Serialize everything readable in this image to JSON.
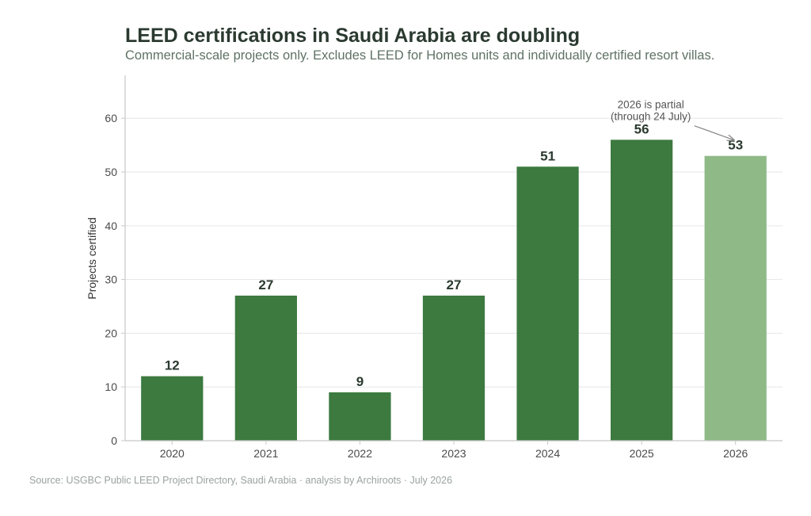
{
  "header": {
    "title": "LEED certifications in Saudi Arabia are doubling",
    "subtitle": "Commercial-scale projects only. Excludes LEED for Homes units and individually certified resort villas."
  },
  "footer": {
    "source": "Source: USGBC Public LEED Project Directory, Saudi Arabia · analysis by Archiroots · July 2026"
  },
  "chart_data": {
    "type": "bar",
    "categories": [
      "2020",
      "2021",
      "2022",
      "2023",
      "2024",
      "2025",
      "2026"
    ],
    "values": [
      12,
      27,
      9,
      27,
      51,
      56,
      53
    ],
    "ylabel": "Projects certified",
    "xlabel": "",
    "ylim": [
      0,
      68
    ],
    "yticks": [
      0,
      10,
      20,
      30,
      40,
      50,
      60
    ],
    "grid": "horizontal",
    "colors": {
      "bar": "#3c7a3f",
      "bar_partial": "#8fba87",
      "grid": "#e6e6e6",
      "axis": "#c8c8c8"
    },
    "partial_category": "2026",
    "annotation": {
      "lines": [
        "2026 is partial",
        "(through 24 July)"
      ],
      "target": "2026"
    }
  }
}
